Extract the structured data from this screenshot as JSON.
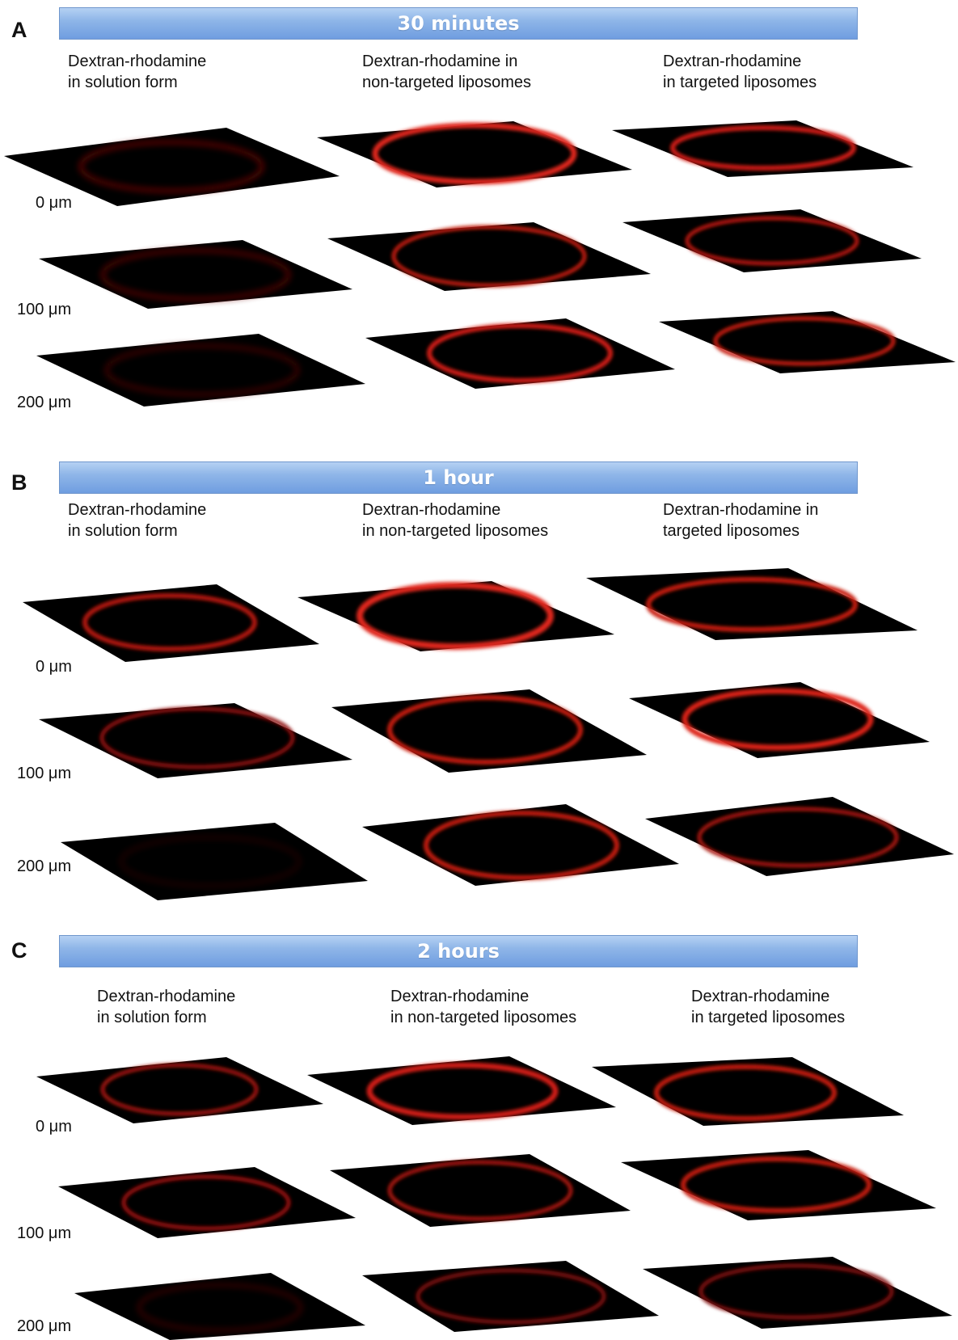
{
  "panels": [
    {
      "letter": "A",
      "title": "30 minutes",
      "columns": [
        "Dextran-rhodamine\nin solution form",
        "Dextran-rhodamine in\nnon-targeted liposomes",
        "Dextran-rhodamine\nin targeted liposomes"
      ],
      "depths": [
        "0 μm",
        "100 μm",
        "200 μm"
      ]
    },
    {
      "letter": "B",
      "title": "1 hour",
      "columns": [
        "Dextran-rhodamine\nin solution form",
        "Dextran-rhodamine\nin non-targeted liposomes",
        "Dextran-rhodamine in\ntargeted liposomes"
      ],
      "depths": [
        "0 μm",
        "100 μm",
        "200 μm"
      ]
    },
    {
      "letter": "C",
      "title": "2 hours",
      "columns": [
        "Dextran-rhodamine\nin solution form",
        "Dextran-rhodamine\nin non-targeted liposomes",
        "Dextran-rhodamine\nin targeted liposomes"
      ],
      "depths": [
        "0 μm",
        "100 μm",
        "200 μm"
      ]
    }
  ],
  "colors": {
    "banner": "#8fb6e8",
    "tile": "#000000",
    "fluorescence": "#d01a12"
  }
}
